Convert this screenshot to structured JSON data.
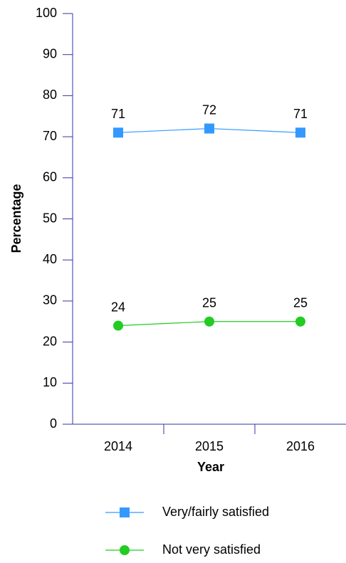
{
  "chart_data": {
    "type": "line",
    "xlabel": "Year",
    "ylabel": "Percentage",
    "categories": [
      "2014",
      "2015",
      "2016"
    ],
    "series": [
      {
        "name": "Very/fairly satisfied",
        "color": "#3399ff",
        "marker": "square",
        "values": [
          71,
          72,
          71
        ]
      },
      {
        "name": "Not very satisfied",
        "color": "#22cc22",
        "marker": "circle",
        "values": [
          24,
          25,
          25
        ]
      }
    ],
    "ylim": [
      0,
      100
    ],
    "yticks": [
      0,
      10,
      20,
      30,
      40,
      50,
      60,
      70,
      80,
      90,
      100
    ],
    "axis_color": "#3333aa",
    "grid": false,
    "legend": "bottom"
  }
}
